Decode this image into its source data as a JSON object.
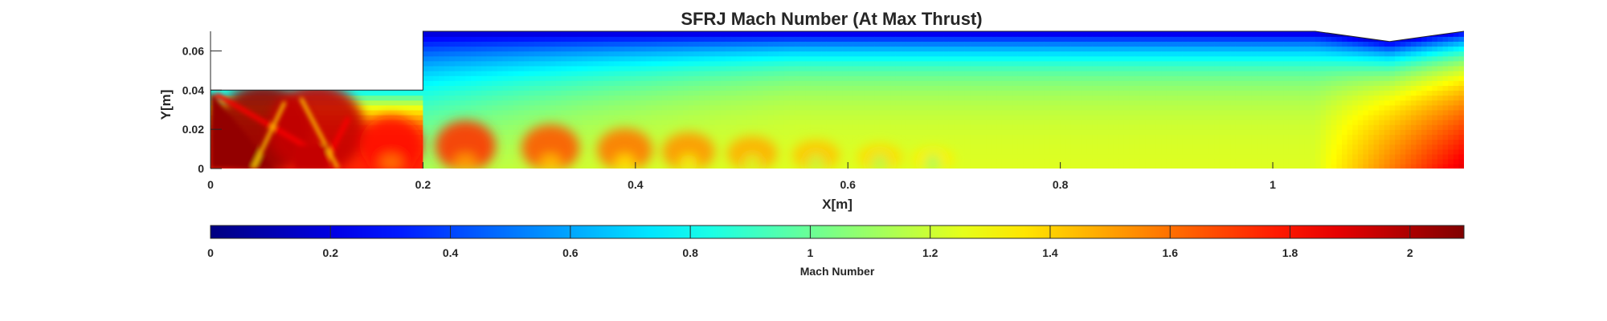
{
  "chart_data": {
    "type": "heatmap",
    "title": "SFRJ Mach Number (At Max Thrust)",
    "xlabel": "X[m]",
    "ylabel": "Y[m]",
    "xlim": [
      0,
      1.18
    ],
    "ylim": [
      0,
      0.07
    ],
    "xticks": [
      "0",
      "0.2",
      "0.4",
      "0.6",
      "0.8",
      "1"
    ],
    "xtick_values": [
      0,
      0.2,
      0.4,
      0.6,
      0.8,
      1.0
    ],
    "yticks": [
      "0",
      "0.02",
      "0.04",
      "0.06"
    ],
    "ytick_values": [
      0,
      0.02,
      0.04,
      0.06
    ],
    "colormap": "jet",
    "colorbar": {
      "label": "Mach Number",
      "range": [
        0,
        2.09
      ],
      "ticks": [
        "0",
        "0.2",
        "0.4",
        "0.6",
        "0.8",
        "1",
        "1.2",
        "1.4",
        "1.6",
        "1.8",
        "2"
      ],
      "tick_values": [
        0,
        0.2,
        0.4,
        0.6,
        0.8,
        1.0,
        1.2,
        1.4,
        1.6,
        1.8,
        2.0
      ],
      "placement": "bottom"
    },
    "geometry": {
      "inlet_wall_y": 0.04,
      "step_x": 0.2,
      "top_wall": [
        [
          0,
          0.04
        ],
        [
          0.2,
          0.04
        ],
        [
          0.2,
          0.07
        ],
        [
          1.04,
          0.07
        ],
        [
          1.11,
          0.0648
        ],
        [
          1.18,
          0.07
        ]
      ]
    },
    "field_estimates": {
      "inlet_region_max_mach": 2.05,
      "shock_cell_centers_x": [
        0.05,
        0.1,
        0.17,
        0.24,
        0.32,
        0.39,
        0.45,
        0.51,
        0.57,
        0.63,
        0.68
      ],
      "shock_cell_peak_mach": [
        2.05,
        1.95,
        1.8,
        1.72,
        1.65,
        1.58,
        1.52,
        1.47,
        1.42,
        1.38,
        1.34
      ],
      "core_mach_far_downstream": 1.25,
      "wall_mach_far_downstream": 0.15,
      "nozzle_exit_max_mach": 1.9
    }
  }
}
